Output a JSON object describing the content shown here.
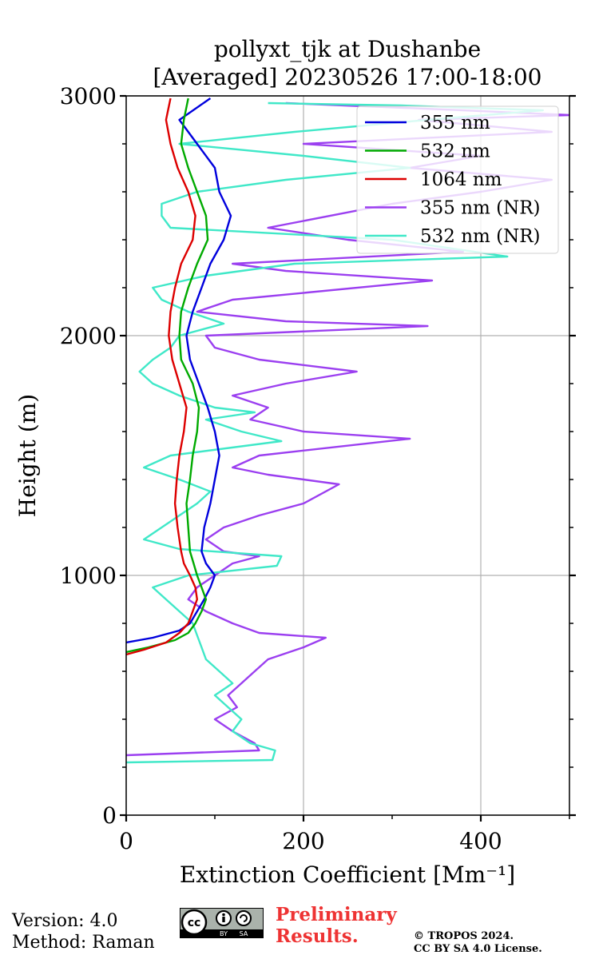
{
  "chart_data": {
    "type": "line",
    "title": "pollyxt_tjk at Dushanbe",
    "subtitle": "[Averaged] 20230526 17:00-18:00",
    "xlabel": "Extinction Coefficient [Mm⁻¹]",
    "ylabel": "Height (m)",
    "xlim": [
      0,
      500
    ],
    "ylim": [
      0,
      3000
    ],
    "x_ticks": [
      "0",
      "200",
      "400"
    ],
    "y_ticks": [
      "0",
      "1000",
      "2000",
      "3000"
    ],
    "grid": true,
    "legend_position": "top-right",
    "series": [
      {
        "name": "355 nm",
        "color": "#0000dd",
        "points": [
          [
            0,
            720
          ],
          [
            30,
            740
          ],
          [
            60,
            770
          ],
          [
            72,
            800
          ],
          [
            80,
            850
          ],
          [
            88,
            900
          ],
          [
            95,
            950
          ],
          [
            100,
            1000
          ],
          [
            90,
            1050
          ],
          [
            85,
            1100
          ],
          [
            88,
            1200
          ],
          [
            95,
            1300
          ],
          [
            100,
            1400
          ],
          [
            105,
            1500
          ],
          [
            100,
            1600
          ],
          [
            92,
            1700
          ],
          [
            82,
            1800
          ],
          [
            72,
            1900
          ],
          [
            68,
            2000
          ],
          [
            75,
            2100
          ],
          [
            85,
            2200
          ],
          [
            95,
            2300
          ],
          [
            110,
            2400
          ],
          [
            118,
            2500
          ],
          [
            105,
            2600
          ],
          [
            100,
            2700
          ],
          [
            80,
            2800
          ],
          [
            60,
            2900
          ],
          [
            95,
            2990
          ]
        ]
      },
      {
        "name": "532 nm",
        "color": "#00aa00",
        "points": [
          [
            0,
            680
          ],
          [
            25,
            700
          ],
          [
            55,
            730
          ],
          [
            70,
            760
          ],
          [
            78,
            800
          ],
          [
            85,
            850
          ],
          [
            90,
            900
          ],
          [
            85,
            950
          ],
          [
            80,
            1000
          ],
          [
            76,
            1050
          ],
          [
            72,
            1100
          ],
          [
            70,
            1200
          ],
          [
            68,
            1300
          ],
          [
            72,
            1400
          ],
          [
            75,
            1500
          ],
          [
            80,
            1600
          ],
          [
            82,
            1700
          ],
          [
            75,
            1800
          ],
          [
            62,
            1900
          ],
          [
            60,
            2000
          ],
          [
            62,
            2100
          ],
          [
            70,
            2200
          ],
          [
            80,
            2300
          ],
          [
            92,
            2400
          ],
          [
            90,
            2500
          ],
          [
            80,
            2600
          ],
          [
            70,
            2700
          ],
          [
            62,
            2800
          ],
          [
            65,
            2900
          ],
          [
            70,
            2990
          ]
        ]
      },
      {
        "name": "1064 nm",
        "color": "#dd0000",
        "points": [
          [
            0,
            670
          ],
          [
            20,
            690
          ],
          [
            45,
            720
          ],
          [
            60,
            760
          ],
          [
            70,
            800
          ],
          [
            75,
            850
          ],
          [
            80,
            900
          ],
          [
            78,
            950
          ],
          [
            72,
            1000
          ],
          [
            65,
            1050
          ],
          [
            62,
            1100
          ],
          [
            58,
            1200
          ],
          [
            55,
            1300
          ],
          [
            57,
            1400
          ],
          [
            60,
            1500
          ],
          [
            65,
            1600
          ],
          [
            68,
            1700
          ],
          [
            60,
            1800
          ],
          [
            52,
            1900
          ],
          [
            48,
            2000
          ],
          [
            50,
            2100
          ],
          [
            55,
            2200
          ],
          [
            62,
            2300
          ],
          [
            75,
            2400
          ],
          [
            78,
            2500
          ],
          [
            70,
            2600
          ],
          [
            58,
            2700
          ],
          [
            50,
            2800
          ],
          [
            45,
            2900
          ],
          [
            50,
            2990
          ]
        ]
      },
      {
        "name": "355 nm (NR)",
        "color": "#9b3ff0",
        "points": [
          [
            0,
            250
          ],
          [
            150,
            270
          ],
          [
            145,
            300
          ],
          [
            120,
            350
          ],
          [
            100,
            400
          ],
          [
            125,
            450
          ],
          [
            115,
            500
          ],
          [
            130,
            550
          ],
          [
            145,
            600
          ],
          [
            160,
            650
          ],
          [
            200,
            700
          ],
          [
            225,
            740
          ],
          [
            150,
            760
          ],
          [
            120,
            800
          ],
          [
            90,
            850
          ],
          [
            70,
            900
          ],
          [
            80,
            950
          ],
          [
            100,
            1000
          ],
          [
            120,
            1050
          ],
          [
            150,
            1080
          ],
          [
            110,
            1100
          ],
          [
            90,
            1150
          ],
          [
            110,
            1200
          ],
          [
            150,
            1250
          ],
          [
            200,
            1300
          ],
          [
            240,
            1380
          ],
          [
            160,
            1420
          ],
          [
            120,
            1450
          ],
          [
            150,
            1500
          ],
          [
            320,
            1570
          ],
          [
            200,
            1600
          ],
          [
            140,
            1650
          ],
          [
            160,
            1700
          ],
          [
            120,
            1750
          ],
          [
            180,
            1800
          ],
          [
            260,
            1850
          ],
          [
            150,
            1900
          ],
          [
            100,
            1950
          ],
          [
            90,
            2000
          ],
          [
            340,
            2040
          ],
          [
            180,
            2060
          ],
          [
            80,
            2100
          ],
          [
            120,
            2150
          ],
          [
            345,
            2230
          ],
          [
            180,
            2270
          ],
          [
            120,
            2300
          ],
          [
            380,
            2350
          ],
          [
            250,
            2400
          ],
          [
            160,
            2450
          ],
          [
            300,
            2550
          ],
          [
            400,
            2600
          ],
          [
            480,
            2650
          ],
          [
            320,
            2700
          ],
          [
            400,
            2750
          ],
          [
            200,
            2800
          ],
          [
            480,
            2850
          ],
          [
            330,
            2900
          ],
          [
            500,
            2920
          ],
          [
            380,
            2940
          ],
          [
            180,
            2970
          ]
        ]
      },
      {
        "name": "532 nm (NR)",
        "color": "#40e8c8",
        "points": [
          [
            0,
            220
          ],
          [
            165,
            230
          ],
          [
            168,
            270
          ],
          [
            140,
            300
          ],
          [
            120,
            350
          ],
          [
            130,
            400
          ],
          [
            115,
            450
          ],
          [
            100,
            500
          ],
          [
            120,
            550
          ],
          [
            105,
            600
          ],
          [
            90,
            650
          ],
          [
            85,
            700
          ],
          [
            80,
            750
          ],
          [
            75,
            800
          ],
          [
            60,
            850
          ],
          [
            45,
            900
          ],
          [
            30,
            950
          ],
          [
            70,
            1000
          ],
          [
            170,
            1040
          ],
          [
            175,
            1080
          ],
          [
            60,
            1110
          ],
          [
            20,
            1150
          ],
          [
            40,
            1200
          ],
          [
            60,
            1250
          ],
          [
            80,
            1300
          ],
          [
            95,
            1350
          ],
          [
            60,
            1400
          ],
          [
            20,
            1450
          ],
          [
            50,
            1500
          ],
          [
            175,
            1560
          ],
          [
            130,
            1600
          ],
          [
            90,
            1650
          ],
          [
            145,
            1680
          ],
          [
            100,
            1700
          ],
          [
            60,
            1750
          ],
          [
            30,
            1800
          ],
          [
            15,
            1850
          ],
          [
            30,
            1900
          ],
          [
            50,
            1950
          ],
          [
            60,
            2000
          ],
          [
            110,
            2050
          ],
          [
            70,
            2100
          ],
          [
            40,
            2150
          ],
          [
            30,
            2200
          ],
          [
            90,
            2250
          ],
          [
            190,
            2300
          ],
          [
            430,
            2330
          ],
          [
            300,
            2400
          ],
          [
            50,
            2450
          ],
          [
            40,
            2500
          ],
          [
            40,
            2550
          ],
          [
            80,
            2600
          ],
          [
            180,
            2650
          ],
          [
            320,
            2700
          ],
          [
            200,
            2750
          ],
          [
            60,
            2800
          ],
          [
            190,
            2850
          ],
          [
            340,
            2900
          ],
          [
            470,
            2940
          ],
          [
            310,
            2960
          ],
          [
            160,
            2970
          ]
        ]
      }
    ]
  },
  "footer": {
    "version": "Version: 4.0",
    "method": "Method: Raman",
    "preliminary_line1": "Preliminary",
    "preliminary_line2": "Results.",
    "copyright_line1": "© TROPOS 2024.",
    "copyright_line2": "CC BY SA 4.0 License.",
    "badge_by": "BY",
    "badge_sa": "SA",
    "badge_cc": "cc"
  },
  "colors": {
    "preliminary": "#ee3333",
    "grid": "#b0b0b0"
  }
}
